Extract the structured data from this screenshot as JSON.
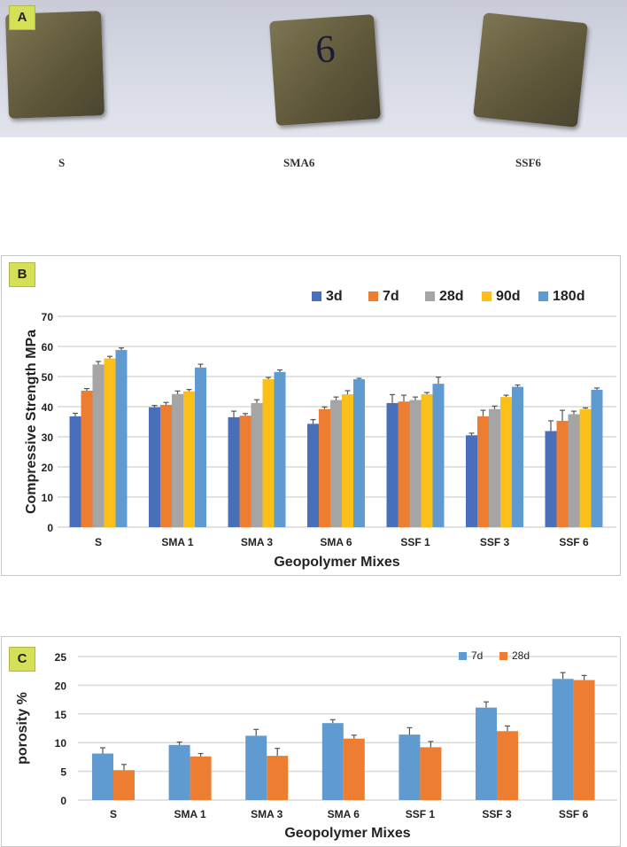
{
  "panels": {
    "a": "A",
    "b": "B",
    "c": "C"
  },
  "photo": {
    "captions": [
      "S",
      "SMA6",
      "SSF6"
    ],
    "marks": [
      "6"
    ]
  },
  "chart_data": [
    {
      "type": "bar",
      "title": "",
      "xlabel": "Geopolymer Mixes",
      "ylabel": "Compressive Strength MPa",
      "ylim": [
        0,
        70
      ],
      "yticks": [
        0,
        10,
        20,
        30,
        40,
        50,
        60,
        70
      ],
      "grid": true,
      "legend": "top-right",
      "categories": [
        "S",
        "SMA 1",
        "SMA 3",
        "SMA 6",
        "SSF 1",
        "SSF 3",
        "SSF 6"
      ],
      "series": [
        {
          "name": "3d",
          "color": "#4a6fba",
          "values": [
            36.8,
            39.8,
            36.5,
            34.3,
            41.2,
            30.5,
            31.9
          ],
          "errors": [
            1.0,
            0.6,
            2.0,
            1.4,
            2.8,
            0.7,
            3.4
          ]
        },
        {
          "name": "7d",
          "color": "#ed7d31",
          "values": [
            45.3,
            40.6,
            37.0,
            39.2,
            41.7,
            36.8,
            35.3
          ],
          "errors": [
            0.7,
            0.8,
            0.7,
            0.7,
            2.1,
            2.0,
            3.5
          ]
        },
        {
          "name": "28d",
          "color": "#a5a5a5",
          "values": [
            54.0,
            44.2,
            41.2,
            42.2,
            42.2,
            39.2,
            37.5
          ],
          "errors": [
            1.0,
            1.0,
            1.1,
            1.0,
            1.0,
            1.0,
            1.0
          ]
        },
        {
          "name": "90d",
          "color": "#fbbf1a",
          "values": [
            56.0,
            45.1,
            49.1,
            44.1,
            44.1,
            43.2,
            39.2
          ],
          "errors": [
            0.7,
            0.6,
            0.6,
            1.2,
            0.6,
            0.6,
            0.4
          ]
        },
        {
          "name": "180d",
          "color": "#5f9bd0",
          "values": [
            58.8,
            53.0,
            51.5,
            49.1,
            47.6,
            46.6,
            45.6
          ],
          "errors": [
            0.7,
            1.1,
            0.7,
            0.3,
            2.2,
            0.6,
            0.6
          ]
        }
      ]
    },
    {
      "type": "bar",
      "title": "",
      "xlabel": "Geopolymer Mixes",
      "ylabel": "porosity %",
      "ylim": [
        0,
        25
      ],
      "yticks": [
        0,
        5,
        10,
        15,
        20,
        25
      ],
      "grid": true,
      "legend": "top-right",
      "categories": [
        "S",
        "SMA 1",
        "SMA 3",
        "SMA 6",
        "SSF 1",
        "SSF 3",
        "SSF 6"
      ],
      "series": [
        {
          "name": "7d",
          "color": "#5f9bd0",
          "values": [
            8.1,
            9.6,
            11.2,
            13.4,
            11.4,
            16.1,
            21.1
          ],
          "errors": [
            1.0,
            0.5,
            1.1,
            0.6,
            1.2,
            1.0,
            1.1
          ]
        },
        {
          "name": "28d",
          "color": "#ed7d31",
          "values": [
            5.2,
            7.6,
            7.7,
            10.7,
            9.2,
            12.0,
            20.9
          ],
          "errors": [
            1.0,
            0.5,
            1.3,
            0.6,
            1.0,
            0.9,
            0.8
          ]
        }
      ]
    }
  ]
}
